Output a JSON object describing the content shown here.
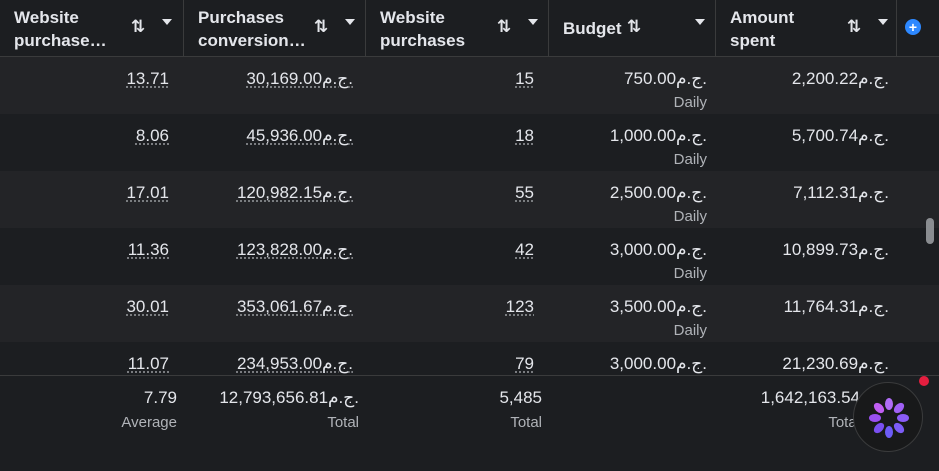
{
  "headers": [
    {
      "label": "Website purchase…",
      "line1": "Website",
      "line2": "purchase…"
    },
    {
      "label": "Purchases conversion…",
      "line1": "Purchases",
      "line2": "conversion…"
    },
    {
      "label": "Website purchases",
      "line1": "Website",
      "line2": "purchases"
    },
    {
      "label": "Budget"
    },
    {
      "label": "Amount spent",
      "line1": "Amount",
      "line2": "spent"
    }
  ],
  "rows": [
    {
      "website_purchase_roas": "13.71",
      "conversion_value": "30,169.00ج.م.",
      "website_purchases": "15",
      "budget": "750.00ج.م.",
      "budget_type": "Daily",
      "amount_spent": "2,200.22ج.م."
    },
    {
      "website_purchase_roas": "8.06",
      "conversion_value": "45,936.00ج.م.",
      "website_purchases": "18",
      "budget": "1,000.00ج.م.",
      "budget_type": "Daily",
      "amount_spent": "5,700.74ج.م."
    },
    {
      "website_purchase_roas": "17.01",
      "conversion_value": "120,982.15ج.م.",
      "website_purchases": "55",
      "budget": "2,500.00ج.م.",
      "budget_type": "Daily",
      "amount_spent": "7,112.31ج.م."
    },
    {
      "website_purchase_roas": "11.36",
      "conversion_value": "123,828.00ج.م.",
      "website_purchases": "42",
      "budget": "3,000.00ج.م.",
      "budget_type": "Daily",
      "amount_spent": "10,899.73ج.م."
    },
    {
      "website_purchase_roas": "30.01",
      "conversion_value": "353,061.67ج.م.",
      "website_purchases": "123",
      "budget": "3,500.00ج.م.",
      "budget_type": "Daily",
      "amount_spent": "11,764.31ج.م."
    },
    {
      "website_purchase_roas": "11.07",
      "conversion_value": "234,953.00ج.م.",
      "website_purchases": "79",
      "budget": "3,000.00ج.م.",
      "budget_type": "",
      "amount_spent": "21,230.69ج.م."
    }
  ],
  "footer": {
    "roas": {
      "value": "7.79",
      "label": "Average"
    },
    "conversion_value": {
      "value": "12,793,656.81ج.م.",
      "label": "Total"
    },
    "purchases": {
      "value": "5,485",
      "label": "Total"
    },
    "amount_spent": {
      "value": "1,642,163.54",
      "label": "Total"
    }
  },
  "icons": {
    "sort": "sort-arrows-icon",
    "caret": "caret-down-icon",
    "add_column": "plus-circle-icon",
    "assistant": "meta-ai-assistant-icon"
  },
  "colors": {
    "background": "#1c1e21",
    "row_alt": "#232427",
    "accent": "#2d88ff",
    "assistant_purple": "#8b5cf6",
    "notification": "#e41e3f"
  }
}
